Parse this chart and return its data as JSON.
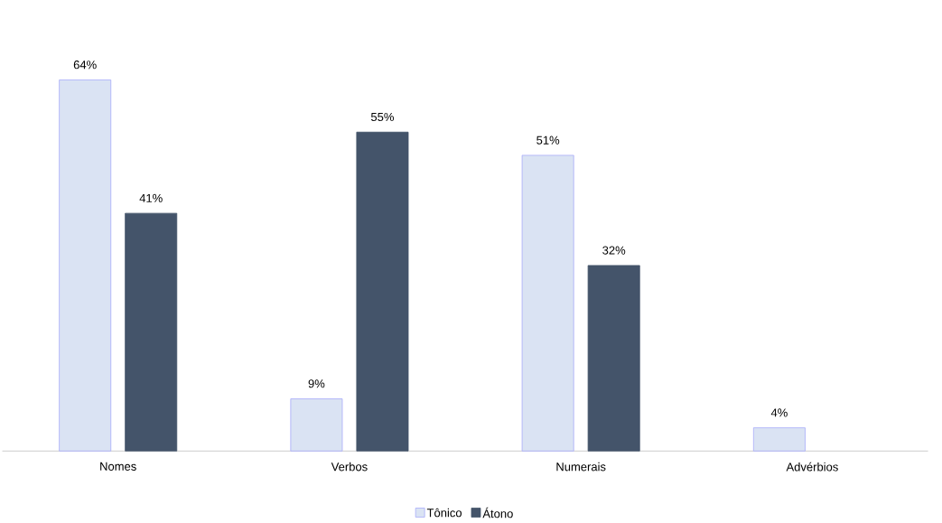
{
  "chart_data": {
    "type": "bar",
    "categories": [
      "Nomes",
      "Verbos",
      "Numerais",
      "Advérbios"
    ],
    "series": [
      {
        "name": "Tônico",
        "color": "#dae3f3",
        "values": [
          64,
          9,
          51,
          4
        ],
        "value_labels": [
          "64%",
          "9%",
          "51%",
          "4%"
        ]
      },
      {
        "name": "Átono",
        "color": "#44546a",
        "values": [
          41,
          55,
          32,
          null
        ],
        "value_labels": [
          "41%",
          "55%",
          "32%",
          null
        ]
      }
    ],
    "legend": "bottom",
    "tick_labels": "x"
  }
}
